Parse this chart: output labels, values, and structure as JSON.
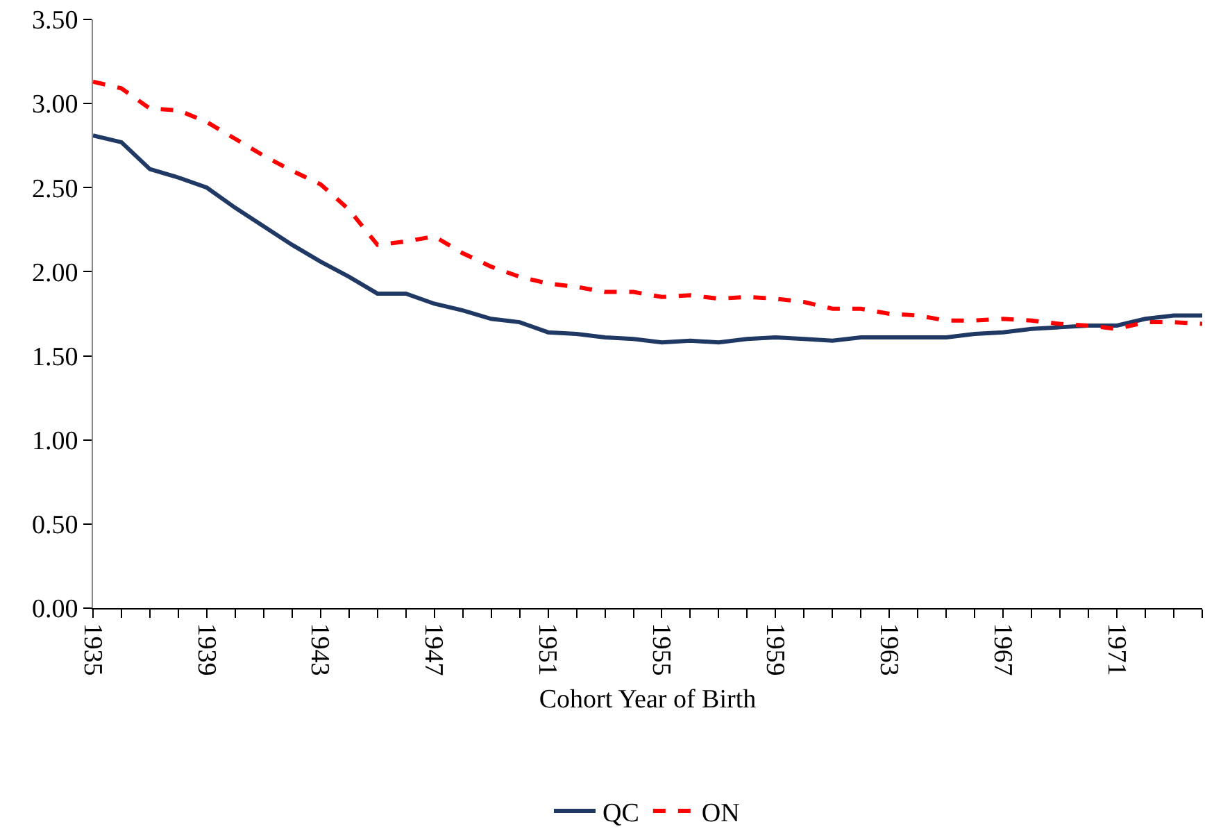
{
  "chart_data": {
    "type": "line",
    "xlabel": "Cohort Year of Birth",
    "x": [
      1935,
      1936,
      1937,
      1938,
      1939,
      1940,
      1941,
      1942,
      1943,
      1944,
      1945,
      1946,
      1947,
      1948,
      1949,
      1950,
      1951,
      1952,
      1953,
      1954,
      1955,
      1956,
      1957,
      1958,
      1959,
      1960,
      1961,
      1962,
      1963,
      1964,
      1965,
      1966,
      1967,
      1968,
      1969,
      1970,
      1971,
      1972,
      1973,
      1974
    ],
    "series": [
      {
        "name": "QC",
        "color": "#1f3864",
        "line_style": "solid",
        "values": [
          2.81,
          2.77,
          2.61,
          2.56,
          2.5,
          2.38,
          2.27,
          2.16,
          2.06,
          1.97,
          1.87,
          1.87,
          1.81,
          1.77,
          1.72,
          1.7,
          1.64,
          1.63,
          1.61,
          1.6,
          1.58,
          1.59,
          1.58,
          1.6,
          1.61,
          1.6,
          1.59,
          1.61,
          1.61,
          1.61,
          1.61,
          1.63,
          1.64,
          1.66,
          1.67,
          1.68,
          1.68,
          1.72,
          1.74,
          1.74
        ]
      },
      {
        "name": "ON",
        "color": "#ff0000",
        "line_style": "dashed",
        "values": [
          3.13,
          3.09,
          2.97,
          2.96,
          2.89,
          2.79,
          2.69,
          2.6,
          2.52,
          2.37,
          2.16,
          2.18,
          2.21,
          2.11,
          2.03,
          1.97,
          1.93,
          1.91,
          1.88,
          1.88,
          1.85,
          1.86,
          1.84,
          1.85,
          1.84,
          1.82,
          1.78,
          1.78,
          1.75,
          1.74,
          1.71,
          1.71,
          1.72,
          1.71,
          1.69,
          1.68,
          1.66,
          1.7,
          1.7,
          1.69
        ]
      }
    ],
    "xlim": [
      1935,
      1974
    ],
    "xticks": [
      1935,
      {
        "value": 1936,
        "label": null
      },
      {
        "value": 1937,
        "label": null
      },
      {
        "value": 1938,
        "label": null
      },
      1939,
      {
        "value": 1940,
        "label": null
      },
      {
        "value": 1941,
        "label": null
      },
      {
        "value": 1942,
        "label": null
      },
      1943,
      {
        "value": 1944,
        "label": null
      },
      {
        "value": 1945,
        "label": null
      },
      {
        "value": 1946,
        "label": null
      },
      1947,
      {
        "value": 1948,
        "label": null
      },
      {
        "value": 1949,
        "label": null
      },
      {
        "value": 1950,
        "label": null
      },
      1951,
      {
        "value": 1952,
        "label": null
      },
      {
        "value": 1953,
        "label": null
      },
      {
        "value": 1954,
        "label": null
      },
      1955,
      {
        "value": 1956,
        "label": null
      },
      {
        "value": 1957,
        "label": null
      },
      {
        "value": 1958,
        "label": null
      },
      1959,
      {
        "value": 1960,
        "label": null
      },
      {
        "value": 1961,
        "label": null
      },
      {
        "value": 1962,
        "label": null
      },
      1963,
      {
        "value": 1964,
        "label": null
      },
      {
        "value": 1965,
        "label": null
      },
      {
        "value": 1966,
        "label": null
      },
      1967,
      {
        "value": 1968,
        "label": null
      },
      {
        "value": 1969,
        "label": null
      },
      {
        "value": 1970,
        "label": null
      },
      1971,
      {
        "value": 1972,
        "label": null
      },
      {
        "value": 1973,
        "label": null
      },
      {
        "value": 1974,
        "label": null
      }
    ],
    "ylim": [
      0,
      3.5
    ],
    "yticks": [
      {
        "value": 0,
        "label": "0.00"
      },
      {
        "value": 0.5,
        "label": "0.50"
      },
      {
        "value": 1,
        "label": "1.00"
      },
      {
        "value": 1.5,
        "label": "1.50"
      },
      {
        "value": 2,
        "label": "2.00"
      },
      {
        "value": 2.5,
        "label": "2.50"
      },
      {
        "value": 3,
        "label": "3.00"
      },
      {
        "value": 3.5,
        "label": "3.50"
      }
    ],
    "grid": false,
    "legend": "bottom",
    "marker": "none"
  }
}
